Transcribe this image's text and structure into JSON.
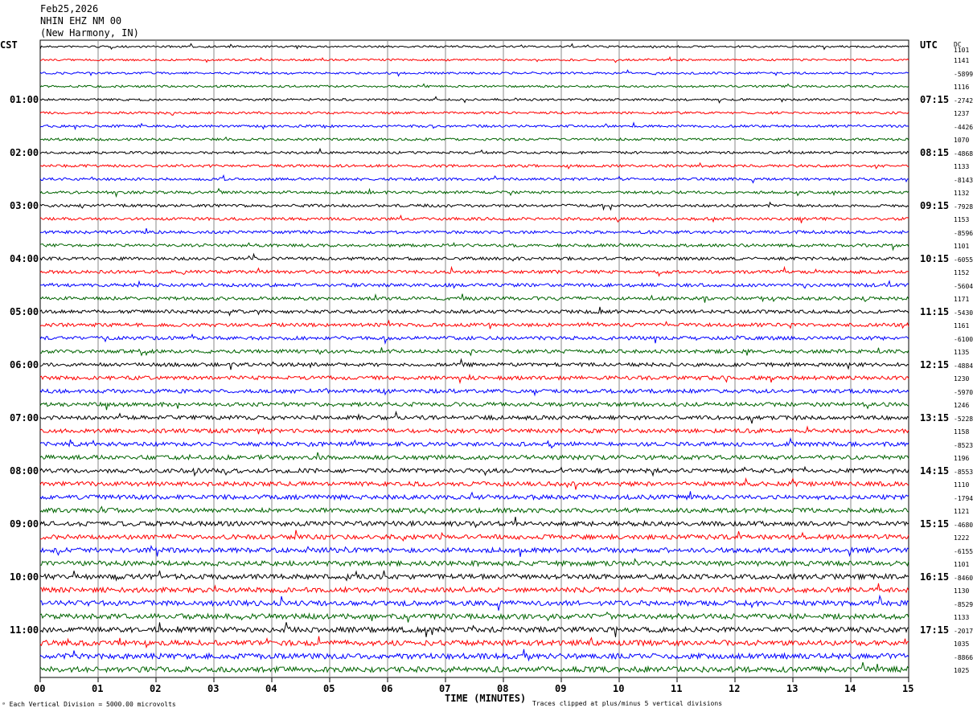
{
  "header": {
    "date": "Feb25,2026",
    "station": "NHIN EHZ NM 00",
    "location": "(New Harmony, IN)"
  },
  "left_tz": "CST",
  "right_tz": "UTC",
  "dc_label": "DC",
  "left_times": [
    "01:00",
    "02:00",
    "03:00",
    "04:00",
    "05:00",
    "06:00",
    "07:00",
    "08:00",
    "09:00",
    "10:00",
    "11:00"
  ],
  "right_times": [
    "07:15",
    "08:15",
    "09:15",
    "10:15",
    "11:15",
    "12:15",
    "13:15",
    "14:15",
    "15:15",
    "16:15",
    "17:15"
  ],
  "dc_values": [
    "1101",
    "1141",
    "-5899",
    "1116",
    "-2742",
    "1237",
    "-4426",
    "1070",
    "-4868",
    "1133",
    "-8143",
    "1132",
    "-7928",
    "1153",
    "-8596",
    "1101",
    "-6055",
    "1152",
    "-5604",
    "1171",
    "-5430",
    "1161",
    "-6100",
    "1135",
    "-4884",
    "1230",
    "-5970",
    "1246",
    "-5228",
    "1158",
    "-8523",
    "1196",
    "-8553",
    "1110",
    "-1794",
    "1121",
    "-4680",
    "1222",
    "-6155",
    "1101",
    "-8460",
    "1130",
    "-8529",
    "1133",
    "-2017",
    "1035",
    "-8866",
    "1025"
  ],
  "x_ticks": [
    "00",
    "01",
    "02",
    "03",
    "04",
    "05",
    "06",
    "07",
    "08",
    "09",
    "10",
    "11",
    "12",
    "13",
    "14",
    "15"
  ],
  "x_label": "TIME (MINUTES)",
  "footer_left": "Each Vertical Division = 5000.00 microvolts",
  "footer_right": "Traces clipped at plus/minus 5 vertical divisions",
  "trace_colors": [
    "#000000",
    "#ff0000",
    "#0000ff",
    "#006400"
  ]
}
